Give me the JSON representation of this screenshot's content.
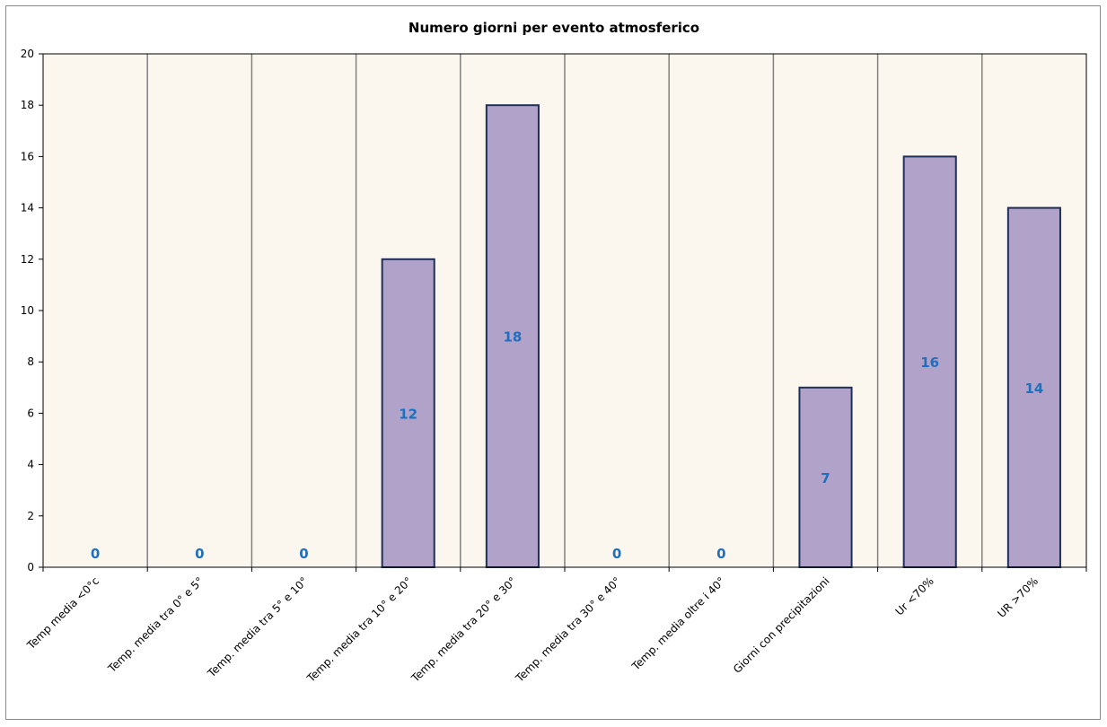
{
  "chart_data": {
    "type": "bar",
    "title": "Numero giorni  per evento atmosferico",
    "xlabel": "",
    "ylabel": "",
    "ylim": [
      0,
      20
    ],
    "yticks": [
      0,
      2,
      4,
      6,
      8,
      10,
      12,
      14,
      16,
      18,
      20
    ],
    "grid": "vertical category separators",
    "legend": "none",
    "categories": [
      "Temp media <0°c",
      "Temp. media tra 0° e 5°",
      "Temp. media tra 5° e 10°",
      "Temp. media tra 10° e 20°",
      "Temp. media tra 20° e 30°",
      "Temp. media tra 30° e 40°",
      "Temp. media oltre i 40°",
      "Giorni con precipitazioni",
      "Ur  <70%",
      "UR >70%"
    ],
    "values": [
      0,
      0,
      0,
      12,
      18,
      0,
      0,
      7,
      16,
      14
    ],
    "colors": {
      "bar_fill": "#b1a2c9",
      "bar_stroke": "#1f2f5a",
      "plot_bg": "#fcf7ee",
      "plot_border": "#000000",
      "gridline": "#808080",
      "data_label": "#1f6fbf"
    }
  }
}
